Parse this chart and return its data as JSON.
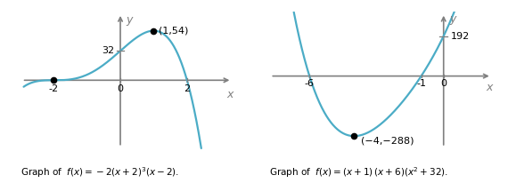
{
  "curve_color": "#4bacc6",
  "axis_color": "#7f7f7f",
  "dot_color": "#000000",
  "text_color": "#000000",
  "background": "#ffffff",
  "graph1": {
    "func_label": "Graph of  $f(x) = -2(x + 2)^3(x - 2)$.",
    "xlim": [
      -3.0,
      3.4
    ],
    "ylim": [
      -75,
      75
    ],
    "x_curve_start": -2.9,
    "x_curve_end": 2.65,
    "x_ticks": [
      -2,
      0,
      2
    ],
    "y_tick_val": 32,
    "y_tick_label": "32",
    "special_points": [
      [
        -2,
        0
      ],
      [
        1,
        54
      ]
    ],
    "point_label_text": "(1,54)",
    "x_axis_label": "x",
    "y_axis_label": "y"
  },
  "graph2": {
    "func_label": "Graph of  $f(x) = (x + 1)\\,(x + 6)(x^2 + 32)$.",
    "xlim": [
      -7.8,
      2.2
    ],
    "ylim": [
      -350,
      310
    ],
    "x_curve_start": -7.6,
    "x_curve_end": 1.3,
    "x_ticks": [
      -6,
      -1,
      0
    ],
    "y_tick_val": 192,
    "y_tick_label": "192",
    "special_points": [
      [
        -4,
        -288
      ]
    ],
    "point_label_text": "(−4,−288)",
    "x_axis_label": "x",
    "y_axis_label": "y"
  }
}
